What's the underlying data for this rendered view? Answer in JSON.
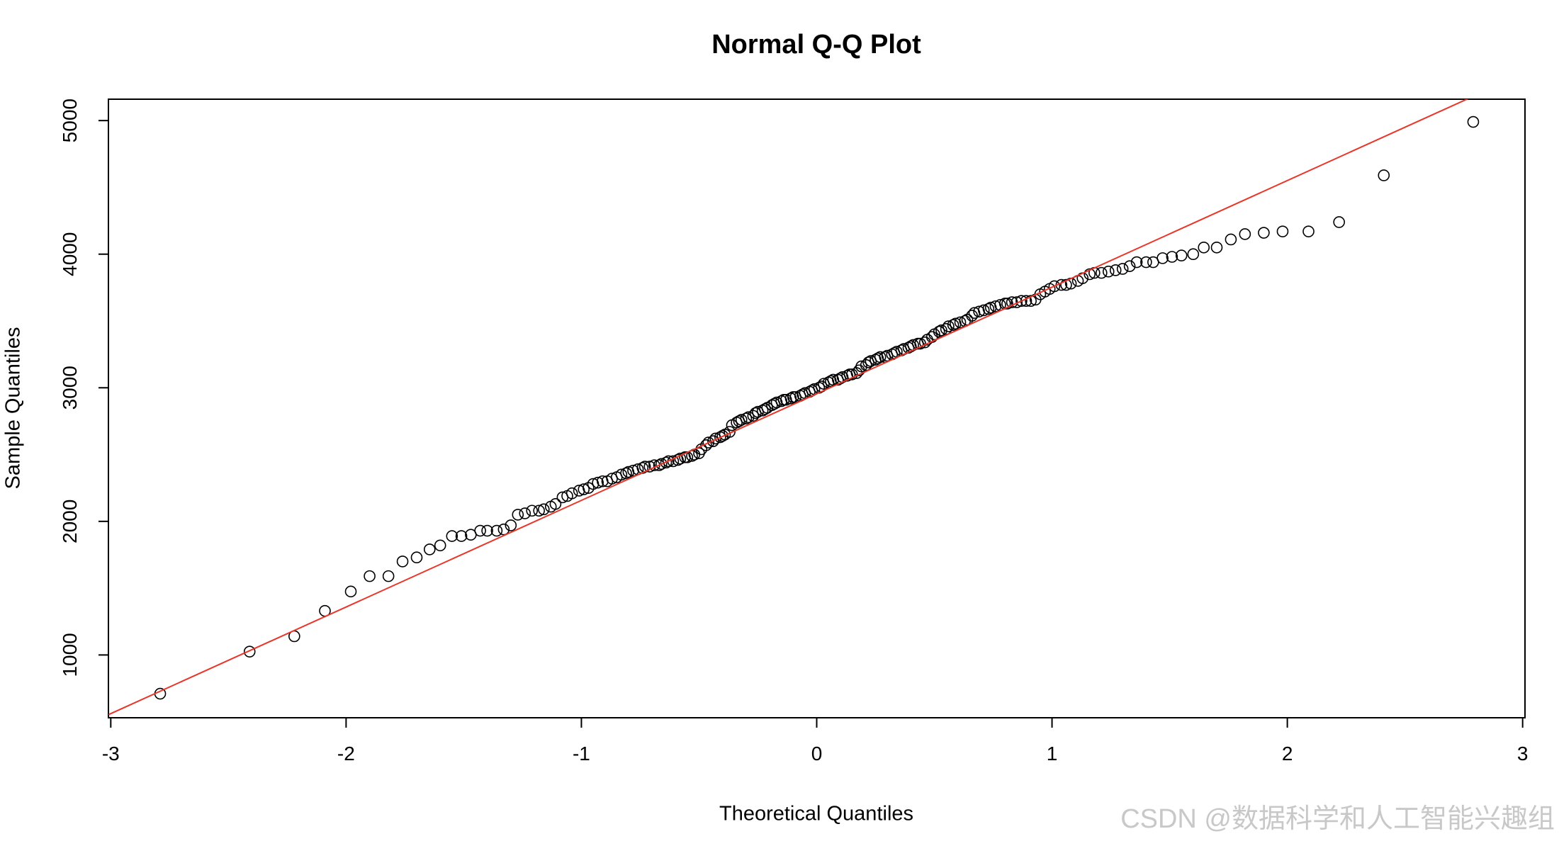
{
  "chart_data": {
    "type": "scatter",
    "title": "Normal Q-Q Plot",
    "x_label": "Theoretical Quantiles",
    "y_label": "Sample Quantiles",
    "watermark": "CSDN @数据科学和人工智能兴趣组",
    "xlim": [
      -3.01,
      3.01
    ],
    "ylim": [
      530,
      5160
    ],
    "xticks": [
      -3,
      -2,
      -1,
      0,
      1,
      2,
      3
    ],
    "yticks": [
      1000,
      2000,
      3000,
      4000,
      5000
    ],
    "marker_color": "#000000",
    "reference_line": {
      "intercept": 2955,
      "slope": 798,
      "color": "#e8372a"
    },
    "x": [
      -2.79,
      -2.41,
      -2.22,
      -2.09,
      -1.98,
      -1.9,
      -1.82,
      -1.76,
      -1.7,
      -1.645,
      -1.6,
      -1.55,
      -1.51,
      -1.47,
      -1.43,
      -1.4,
      -1.36,
      -1.33,
      -1.3,
      -1.27,
      -1.24,
      -1.21,
      -1.18,
      -1.16,
      -1.13,
      -1.11,
      -1.08,
      -1.06,
      -1.04,
      -1.01,
      -0.99,
      -0.97,
      -0.95,
      -0.93,
      -0.91,
      -0.89,
      -0.87,
      -0.85,
      -0.83,
      -0.81,
      -0.8,
      -0.78,
      -0.76,
      -0.74,
      -0.73,
      -0.71,
      -0.69,
      -0.67,
      -0.66,
      -0.64,
      -0.63,
      -0.61,
      -0.59,
      -0.58,
      -0.56,
      -0.55,
      -0.53,
      -0.52,
      -0.5,
      -0.49,
      -0.47,
      -0.46,
      -0.44,
      -0.43,
      -0.41,
      -0.4,
      -0.39,
      -0.37,
      -0.36,
      -0.34,
      -0.33,
      -0.32,
      -0.3,
      -0.29,
      -0.27,
      -0.26,
      -0.25,
      -0.23,
      -0.22,
      -0.21,
      -0.19,
      -0.18,
      -0.17,
      -0.15,
      -0.14,
      -0.13,
      -0.11,
      -0.1,
      -0.09,
      -0.07,
      -0.06,
      -0.05,
      -0.03,
      -0.02,
      -0.01,
      0.01,
      0.02,
      0.03,
      0.05,
      0.06,
      0.07,
      0.09,
      0.1,
      0.11,
      0.13,
      0.14,
      0.15,
      0.17,
      0.18,
      0.19,
      0.21,
      0.22,
      0.23,
      0.25,
      0.26,
      0.27,
      0.29,
      0.3,
      0.32,
      0.33,
      0.34,
      0.36,
      0.37,
      0.39,
      0.4,
      0.41,
      0.43,
      0.44,
      0.46,
      0.47,
      0.49,
      0.5,
      0.52,
      0.53,
      0.55,
      0.56,
      0.58,
      0.59,
      0.61,
      0.63,
      0.64,
      0.66,
      0.67,
      0.69,
      0.71,
      0.73,
      0.74,
      0.76,
      0.78,
      0.8,
      0.81,
      0.83,
      0.85,
      0.87,
      0.89,
      0.91,
      0.93,
      0.95,
      0.97,
      0.99,
      1.01,
      1.04,
      1.06,
      1.08,
      1.11,
      1.13,
      1.16,
      1.18,
      1.21,
      1.24,
      1.27,
      1.3,
      1.33,
      1.36,
      1.4,
      1.43,
      1.47,
      1.51,
      1.55,
      1.6,
      1.645,
      1.7,
      1.76,
      1.82,
      1.9,
      1.98,
      2.09,
      2.22,
      2.41,
      2.79
    ],
    "values": [
      710,
      1025,
      1140,
      1330,
      1475,
      1590,
      1590,
      1700,
      1730,
      1790,
      1820,
      1890,
      1890,
      1900,
      1930,
      1930,
      1930,
      1940,
      1970,
      2050,
      2060,
      2080,
      2080,
      2090,
      2110,
      2130,
      2180,
      2190,
      2210,
      2230,
      2240,
      2250,
      2280,
      2290,
      2300,
      2300,
      2320,
      2330,
      2350,
      2360,
      2370,
      2380,
      2390,
      2400,
      2410,
      2410,
      2420,
      2420,
      2430,
      2440,
      2450,
      2450,
      2460,
      2470,
      2480,
      2480,
      2490,
      2500,
      2510,
      2540,
      2570,
      2590,
      2600,
      2620,
      2630,
      2640,
      2650,
      2670,
      2720,
      2740,
      2750,
      2760,
      2770,
      2780,
      2790,
      2810,
      2820,
      2830,
      2840,
      2850,
      2870,
      2880,
      2890,
      2900,
      2910,
      2910,
      2920,
      2930,
      2930,
      2940,
      2950,
      2960,
      2970,
      2980,
      2990,
      3000,
      3010,
      3030,
      3040,
      3050,
      3060,
      3060,
      3070,
      3080,
      3090,
      3100,
      3100,
      3110,
      3130,
      3160,
      3170,
      3190,
      3200,
      3210,
      3220,
      3230,
      3230,
      3240,
      3250,
      3260,
      3270,
      3280,
      3290,
      3300,
      3310,
      3320,
      3330,
      3330,
      3340,
      3360,
      3380,
      3400,
      3420,
      3430,
      3440,
      3460,
      3470,
      3480,
      3490,
      3500,
      3510,
      3540,
      3560,
      3570,
      3580,
      3590,
      3600,
      3610,
      3620,
      3630,
      3630,
      3640,
      3640,
      3650,
      3650,
      3650,
      3660,
      3700,
      3720,
      3740,
      3760,
      3770,
      3770,
      3780,
      3800,
      3820,
      3850,
      3860,
      3860,
      3870,
      3880,
      3890,
      3910,
      3940,
      3940,
      3940,
      3970,
      3980,
      3990,
      4000,
      4050,
      4050,
      4110,
      4150,
      4160,
      4170,
      4170,
      4240,
      4590,
      4990
    ]
  }
}
